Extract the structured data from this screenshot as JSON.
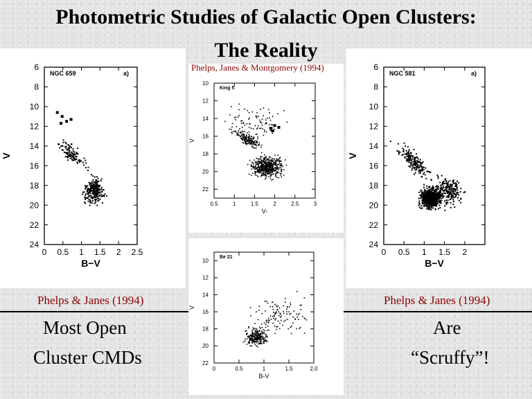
{
  "title": {
    "line1": "Photometric Studies of Galactic Open Clusters:",
    "line2": "The Reality"
  },
  "credits": {
    "center_top": "Phelps, Janes & Montgomery (1994)",
    "left": "Phelps & Janes (1994)",
    "right": "Phelps & Janes (1994)"
  },
  "captions": {
    "left_line1": "Most Open",
    "left_line2": "Cluster CMDs",
    "right_line1": "Are",
    "right_line2": "“Scruffy”!"
  },
  "chart_data": [
    {
      "type": "scatter",
      "cluster": "NGC 659",
      "panel_label": "a)",
      "xlabel": "B−V",
      "ylabel": "V",
      "xlim": [
        0,
        2.5
      ],
      "ylim": [
        24,
        6
      ],
      "x_ticks": [
        "0",
        "0.5",
        "1",
        "1.5",
        "2",
        "2.5"
      ],
      "y_ticks": [
        "6",
        "8",
        "10",
        "12",
        "14",
        "16",
        "18",
        "20",
        "22",
        "24"
      ]
    },
    {
      "type": "scatter",
      "cluster": "King 5",
      "panel_label": "",
      "xlabel": "V-",
      "ylabel": "V",
      "xlim": [
        0.5,
        3
      ],
      "ylim": [
        23,
        10
      ],
      "x_ticks": [
        "0.5",
        "1",
        "1.5",
        "2",
        "2.5",
        "3"
      ],
      "y_ticks": [
        "10",
        "12",
        "14",
        "16",
        "18",
        "20",
        "22"
      ]
    },
    {
      "type": "scatter",
      "cluster": "Be 21",
      "panel_label": "",
      "xlabel": "B-V",
      "ylabel": "V",
      "xlim": [
        0,
        2
      ],
      "ylim": [
        22,
        9
      ],
      "x_ticks": [
        "0",
        "0.5",
        "1",
        "1.5",
        "2.0"
      ],
      "y_ticks": [
        "10",
        "12",
        "14",
        "16",
        "18",
        "20",
        "22"
      ]
    },
    {
      "type": "scatter",
      "cluster": "NGC 581",
      "panel_label": "a)",
      "xlabel": "B−V",
      "ylabel": "V",
      "xlim": [
        0,
        2.5
      ],
      "ylim": [
        24,
        6
      ],
      "x_ticks": [
        "0",
        "0.5",
        "1",
        "1.5",
        "2"
      ],
      "y_ticks": [
        "6",
        "8",
        "10",
        "12",
        "14",
        "16",
        "18",
        "20",
        "22",
        "24"
      ]
    }
  ]
}
